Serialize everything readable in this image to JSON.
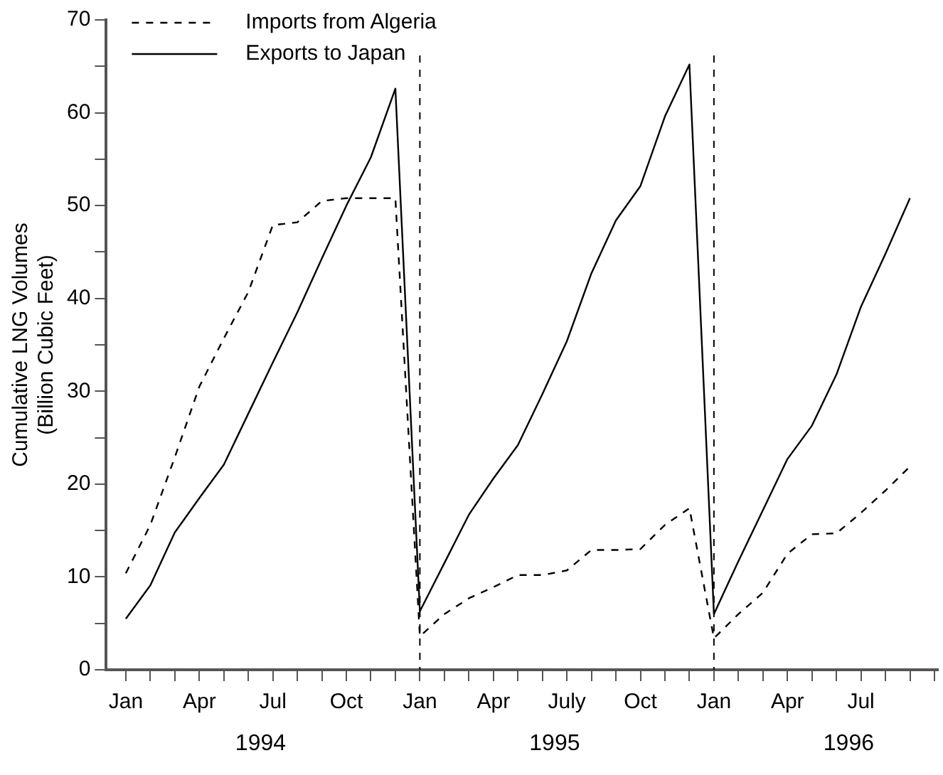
{
  "chart_data": {
    "type": "line",
    "ylabel": "Cumulative LNG Volumes\n(Billion Cubic Feet)",
    "x": [
      "1994-01",
      "1994-02",
      "1994-03",
      "1994-04",
      "1994-05",
      "1994-06",
      "1994-07",
      "1994-08",
      "1994-09",
      "1994-10",
      "1994-11",
      "1994-12",
      "1995-01",
      "1995-02",
      "1995-03",
      "1995-04",
      "1995-05",
      "1995-06",
      "1995-07",
      "1995-08",
      "1995-09",
      "1995-10",
      "1995-11",
      "1995-12",
      "1996-01",
      "1996-02",
      "1996-03",
      "1996-04",
      "1996-05",
      "1996-06",
      "1996-07",
      "1996-08",
      "1996-09"
    ],
    "series": [
      {
        "name": "Imports from Algeria",
        "color": "#000000",
        "line_style": "dashed",
        "values": [
          10.4,
          15.6,
          22.9,
          30.5,
          35.7,
          40.7,
          47.9,
          48.2,
          50.5,
          50.8,
          50.8,
          50.8,
          3.6,
          6.0,
          7.7,
          8.9,
          10.2,
          10.2,
          10.7,
          12.9,
          12.9,
          13.0,
          15.6,
          17.4,
          3.4,
          6.0,
          8.3,
          12.5,
          14.6,
          14.7,
          16.9,
          19.3,
          21.9
        ]
      },
      {
        "name": "Exports to Japan",
        "color": "#000000",
        "line_style": "solid",
        "values": [
          5.5,
          9.1,
          14.8,
          18.5,
          22.1,
          27.6,
          33.1,
          38.5,
          44.3,
          50.0,
          55.2,
          62.6,
          6.3,
          11.5,
          16.7,
          20.6,
          24.2,
          29.7,
          35.4,
          42.7,
          48.4,
          52.1,
          59.6,
          65.2,
          6.0,
          11.7,
          17.2,
          22.7,
          26.3,
          31.8,
          39.1,
          44.8,
          50.8
        ]
      }
    ],
    "xlim": [
      "1993-12-07",
      "1996-10-05"
    ],
    "xticks": [
      {
        "value": "1994-01",
        "label": "Jan"
      },
      {
        "value": "1994-02",
        "label": null
      },
      {
        "value": "1994-03",
        "label": null
      },
      {
        "value": "1994-04",
        "label": "Apr"
      },
      {
        "value": "1994-05",
        "label": null
      },
      {
        "value": "1994-06",
        "label": null
      },
      {
        "value": "1994-07",
        "label": "Jul"
      },
      {
        "value": "1994-08",
        "label": null
      },
      {
        "value": "1994-09",
        "label": null
      },
      {
        "value": "1994-10",
        "label": "Oct"
      },
      {
        "value": "1994-11",
        "label": null
      },
      {
        "value": "1994-12",
        "label": null
      },
      {
        "value": "1995-01",
        "label": "Jan"
      },
      {
        "value": "1995-02",
        "label": null
      },
      {
        "value": "1995-03",
        "label": null
      },
      {
        "value": "1995-04",
        "label": "Apr"
      },
      {
        "value": "1995-05",
        "label": null
      },
      {
        "value": "1995-06",
        "label": null
      },
      {
        "value": "1995-07",
        "label": "July"
      },
      {
        "value": "1995-08",
        "label": null
      },
      {
        "value": "1995-09",
        "label": null
      },
      {
        "value": "1995-10",
        "label": "Oct"
      },
      {
        "value": "1995-11",
        "label": null
      },
      {
        "value": "1995-12",
        "label": null
      },
      {
        "value": "1996-01",
        "label": "Jan"
      },
      {
        "value": "1996-02",
        "label": null
      },
      {
        "value": "1996-03",
        "label": null
      },
      {
        "value": "1996-04",
        "label": "Apr"
      },
      {
        "value": "1996-05",
        "label": null
      },
      {
        "value": "1996-06",
        "label": null
      },
      {
        "value": "1996-07",
        "label": "Jul"
      },
      {
        "value": "1996-08",
        "label": null
      },
      {
        "value": "1996-09",
        "label": null
      },
      {
        "value": "1996-10",
        "label": null
      }
    ],
    "ylim": [
      0,
      70
    ],
    "yticks": [
      0,
      {
        "value": 5,
        "label": null
      },
      10,
      {
        "value": 15,
        "label": null
      },
      20,
      {
        "value": 25,
        "label": null
      },
      30,
      {
        "value": 35,
        "label": null
      },
      40,
      {
        "value": 45,
        "label": null
      },
      50,
      {
        "value": 55,
        "label": null
      },
      60,
      {
        "value": 65,
        "label": null
      },
      70
    ],
    "ref_lines": [
      {
        "axis": "x",
        "value": "1995-01",
        "line_style": "dashed"
      },
      {
        "axis": "x",
        "value": "1996-01",
        "line_style": "dashed"
      }
    ],
    "annotations": [
      "1994",
      "1995",
      "1996"
    ],
    "grid": false,
    "legend": "top left",
    "marker": "none"
  }
}
